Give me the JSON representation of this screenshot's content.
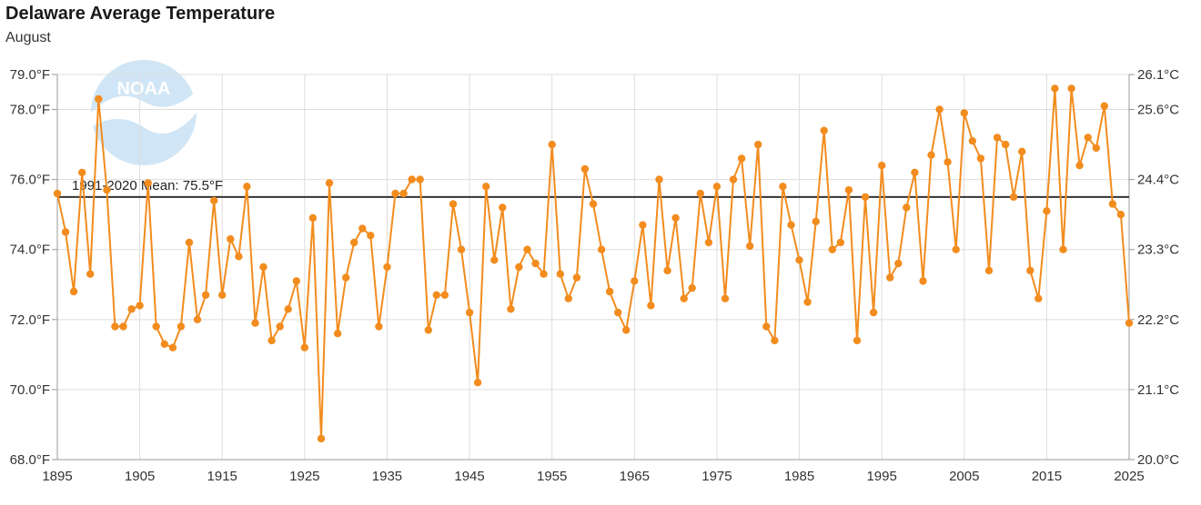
{
  "chart_data": {
    "type": "line",
    "title": "Delaware Average Temperature",
    "subtitle": "August",
    "x_ticks": [
      "1895",
      "1905",
      "1915",
      "1925",
      "1935",
      "1945",
      "1955",
      "1965",
      "1975",
      "1985",
      "1995",
      "2005",
      "2015",
      "2025"
    ],
    "y_left_ticks": [
      "68.0°F",
      "70.0°F",
      "72.0°F",
      "74.0°F",
      "76.0°F",
      "78.0°F",
      "79.0°F"
    ],
    "y_right_ticks": [
      "20.0°C",
      "21.1°C",
      "22.2°C",
      "23.3°C",
      "24.4°C",
      "25.6°C",
      "26.1°C"
    ],
    "xlim": [
      1895,
      2025
    ],
    "ylim": [
      68,
      79
    ],
    "grid": true,
    "series_color": "#f28c1e",
    "mean": {
      "value": 75.5,
      "label": "1991-2020 Mean: 75.5°F",
      "color": "#333333"
    },
    "logo_text": "NOAA",
    "x": [
      1895,
      1896,
      1897,
      1898,
      1899,
      1900,
      1901,
      1902,
      1903,
      1904,
      1905,
      1906,
      1907,
      1908,
      1909,
      1910,
      1911,
      1912,
      1913,
      1914,
      1915,
      1916,
      1917,
      1918,
      1919,
      1920,
      1921,
      1922,
      1923,
      1924,
      1925,
      1926,
      1927,
      1928,
      1929,
      1930,
      1931,
      1932,
      1933,
      1934,
      1935,
      1936,
      1937,
      1938,
      1939,
      1940,
      1941,
      1942,
      1943,
      1944,
      1945,
      1946,
      1947,
      1948,
      1949,
      1950,
      1951,
      1952,
      1953,
      1954,
      1955,
      1956,
      1957,
      1958,
      1959,
      1960,
      1961,
      1962,
      1963,
      1964,
      1965,
      1966,
      1967,
      1968,
      1969,
      1970,
      1971,
      1972,
      1973,
      1974,
      1975,
      1976,
      1977,
      1978,
      1979,
      1980,
      1981,
      1982,
      1983,
      1984,
      1985,
      1986,
      1987,
      1988,
      1989,
      1990,
      1991,
      1992,
      1993,
      1994,
      1995,
      1996,
      1997,
      1998,
      1999,
      2000,
      2001,
      2002,
      2003,
      2004,
      2005,
      2006,
      2007,
      2008,
      2009,
      2010,
      2011,
      2012,
      2013,
      2014,
      2015,
      2016,
      2017,
      2018,
      2019,
      2020,
      2021,
      2022,
      2023,
      2024,
      2025
    ],
    "y": [
      75.6,
      74.5,
      72.8,
      76.2,
      73.3,
      78.3,
      75.7,
      71.8,
      71.8,
      72.3,
      72.4,
      75.9,
      71.8,
      71.3,
      71.2,
      71.8,
      74.2,
      72.0,
      72.7,
      75.4,
      72.7,
      74.3,
      73.8,
      75.8,
      71.9,
      73.5,
      71.4,
      71.8,
      72.3,
      73.1,
      71.2,
      74.9,
      68.6,
      75.9,
      71.6,
      73.2,
      74.2,
      74.6,
      74.4,
      71.8,
      73.5,
      75.6,
      75.6,
      76.0,
      76.0,
      71.7,
      72.7,
      72.7,
      75.3,
      74.0,
      72.2,
      70.2,
      75.8,
      73.7,
      75.2,
      72.3,
      73.5,
      74.0,
      73.6,
      73.3,
      77.0,
      73.3,
      72.6,
      73.2,
      76.3,
      75.3,
      74.0,
      72.8,
      72.2,
      71.7,
      73.1,
      74.7,
      72.4,
      76.0,
      73.4,
      74.9,
      72.6,
      72.9,
      75.6,
      74.2,
      75.8,
      72.6,
      76.0,
      76.6,
      74.1,
      77.0,
      71.8,
      71.4,
      75.8,
      74.7,
      73.7,
      72.5,
      74.8,
      77.4,
      74.0,
      74.2,
      75.7,
      71.4,
      75.5,
      72.2,
      76.4,
      73.2,
      73.6,
      75.2,
      76.2,
      73.1,
      76.7,
      78.0,
      76.5,
      74.0,
      77.9,
      77.1,
      76.6,
      73.4,
      77.2,
      77.0,
      75.5,
      76.8,
      73.4,
      72.6,
      75.1,
      78.6,
      74.0,
      78.6,
      76.4,
      77.2,
      76.9,
      78.1,
      75.3,
      75.0,
      71.9
    ]
  }
}
